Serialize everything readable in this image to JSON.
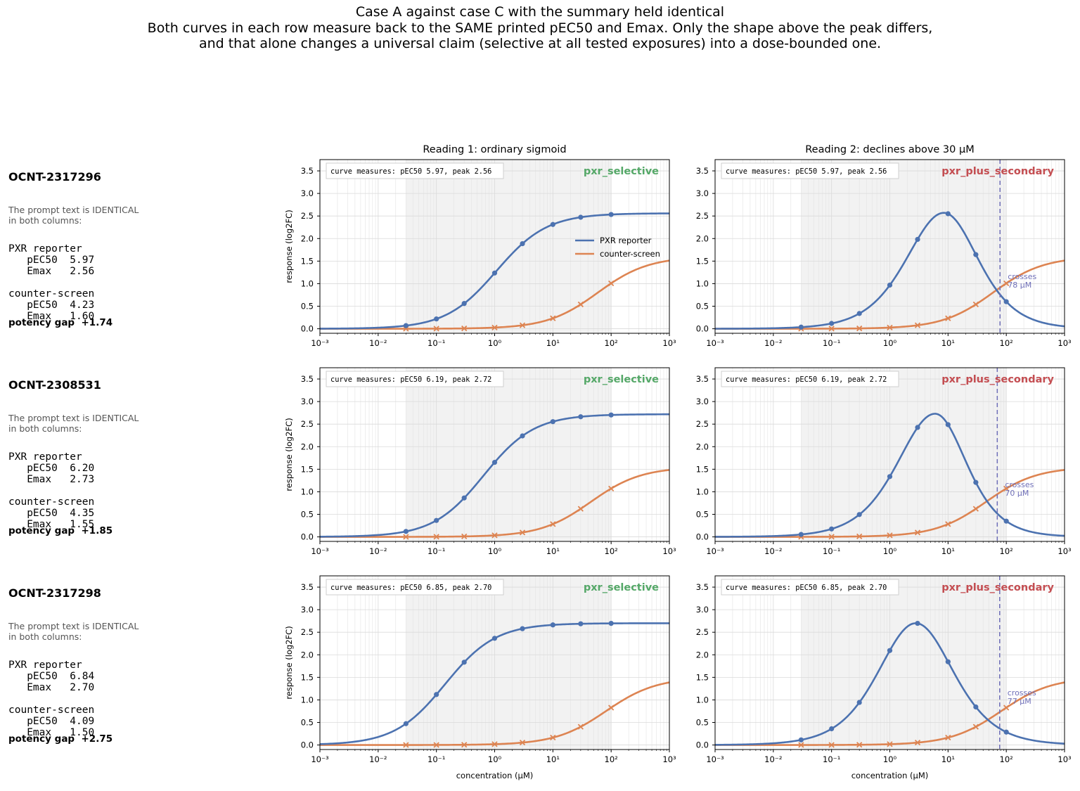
{
  "title_lines": [
    "Case A against case C with the summary held identical",
    "Both curves in each row measure back to the SAME printed pEC50 and Emax. Only the shape above the peak differs,",
    "and that alone changes a universal claim (selective at all tested exposures) into a dose-bounded one."
  ],
  "column_titles": [
    "Reading 1: ordinary sigmoid",
    "Reading 2: declines above 30 µM"
  ],
  "note_lines": [
    "The prompt text is IDENTICAL",
    "in both columns:"
  ],
  "rows": [
    {
      "compound": "OCNT-2317296",
      "pxr_label": "PXR reporter",
      "pxr_pec50": "   pEC50  5.97",
      "pxr_emax": "   Emax   2.56",
      "cs_label": "counter-screen",
      "cs_pec50": "   pEC50  4.23",
      "cs_emax": "   Emax   1.60",
      "gap_text": "potency gap  +1.74",
      "measure_box": "curve measures: pEC50 5.97, peak 2.56",
      "crosses_text": [
        "crosses",
        "78 µM"
      ]
    },
    {
      "compound": "OCNT-2308531",
      "pxr_label": "PXR reporter",
      "pxr_pec50": "   pEC50  6.20",
      "pxr_emax": "   Emax   2.73",
      "cs_label": "counter-screen",
      "cs_pec50": "   pEC50  4.35",
      "cs_emax": "   Emax   1.55",
      "gap_text": "potency gap  +1.85",
      "measure_box": "curve measures: pEC50 6.19, peak 2.72",
      "crosses_text": [
        "crosses",
        "70 µM"
      ]
    },
    {
      "compound": "OCNT-2317298",
      "pxr_label": "PXR reporter",
      "pxr_pec50": "   pEC50  6.84",
      "pxr_emax": "   Emax   2.70",
      "cs_label": "counter-screen",
      "cs_pec50": "   pEC50  4.09",
      "cs_emax": "   Emax   1.50",
      "gap_text": "potency gap  +2.75",
      "measure_box": "curve measures: pEC50 6.85, peak 2.70",
      "crosses_text": [
        "crosses",
        "77 µM"
      ]
    }
  ],
  "chart_data": {
    "type": "line",
    "xscale": "log",
    "xlim": [
      0.001,
      1000
    ],
    "ylim": [
      -0.1,
      3.75
    ],
    "xlabel": "concentration (µM)",
    "ylabel": "response (log2FC)",
    "x_ticks": [
      "10⁻³",
      "10⁻²",
      "10⁻¹",
      "10⁰",
      "10¹",
      "10²",
      "10³"
    ],
    "y_ticks": [
      "0.0",
      "0.5",
      "1.0",
      "1.5",
      "2.0",
      "2.5",
      "3.0",
      "3.5"
    ],
    "tested_range_um": [
      0.03,
      100
    ],
    "legend": [
      "PXR reporter",
      "counter-screen"
    ],
    "legend_location": "center-right of top-left panel",
    "colors": {
      "pxr": "#4c72b0",
      "cs": "#dd8452",
      "selective": "#55a868",
      "secondary": "#c44e52",
      "cross": "#6f6fb8",
      "shade": "#f2f2f2"
    },
    "verdict_labels": [
      "pxr_selective",
      "pxr_plus_secondary"
    ],
    "tested_concentrations_um": [
      0.03,
      0.1,
      0.3,
      1,
      3,
      10,
      30,
      100
    ],
    "panels": [
      {
        "row": 0,
        "reading": 1,
        "verdict": "pxr_selective",
        "pxr": {
          "pec50": 5.97,
          "emax": 2.56,
          "hill": 1.0
        },
        "cs": {
          "pec50": 4.23,
          "emax": 1.6,
          "hill": 1.0
        }
      },
      {
        "row": 0,
        "reading": 2,
        "verdict": "pxr_plus_secondary",
        "pxr_peak": {
          "peak_x_um": 8.5,
          "peak_y": 2.57,
          "up_slope": 1.0,
          "down_slope": 1.1
        },
        "cs": {
          "pec50": 4.23,
          "emax": 1.6,
          "hill": 1.0
        },
        "crossing_um": 78
      },
      {
        "row": 1,
        "reading": 1,
        "verdict": "pxr_selective",
        "pxr": {
          "pec50": 6.19,
          "emax": 2.72,
          "hill": 1.0
        },
        "cs": {
          "pec50": 4.35,
          "emax": 1.55,
          "hill": 1.0
        }
      },
      {
        "row": 1,
        "reading": 2,
        "verdict": "pxr_plus_secondary",
        "pxr_peak": {
          "peak_x_um": 6.0,
          "peak_y": 2.73,
          "up_slope": 1.0,
          "down_slope": 1.2
        },
        "cs": {
          "pec50": 4.35,
          "emax": 1.55,
          "hill": 1.0
        },
        "crossing_um": 70
      },
      {
        "row": 2,
        "reading": 1,
        "verdict": "pxr_selective",
        "pxr": {
          "pec50": 6.85,
          "emax": 2.7,
          "hill": 1.0
        },
        "cs": {
          "pec50": 4.09,
          "emax": 1.5,
          "hill": 1.0
        }
      },
      {
        "row": 2,
        "reading": 2,
        "verdict": "pxr_plus_secondary",
        "pxr_peak": {
          "peak_x_um": 2.8,
          "peak_y": 2.7,
          "up_slope": 1.0,
          "down_slope": 1.0
        },
        "cs": {
          "pec50": 4.09,
          "emax": 1.5,
          "hill": 1.0
        },
        "crossing_um": 77
      }
    ]
  }
}
